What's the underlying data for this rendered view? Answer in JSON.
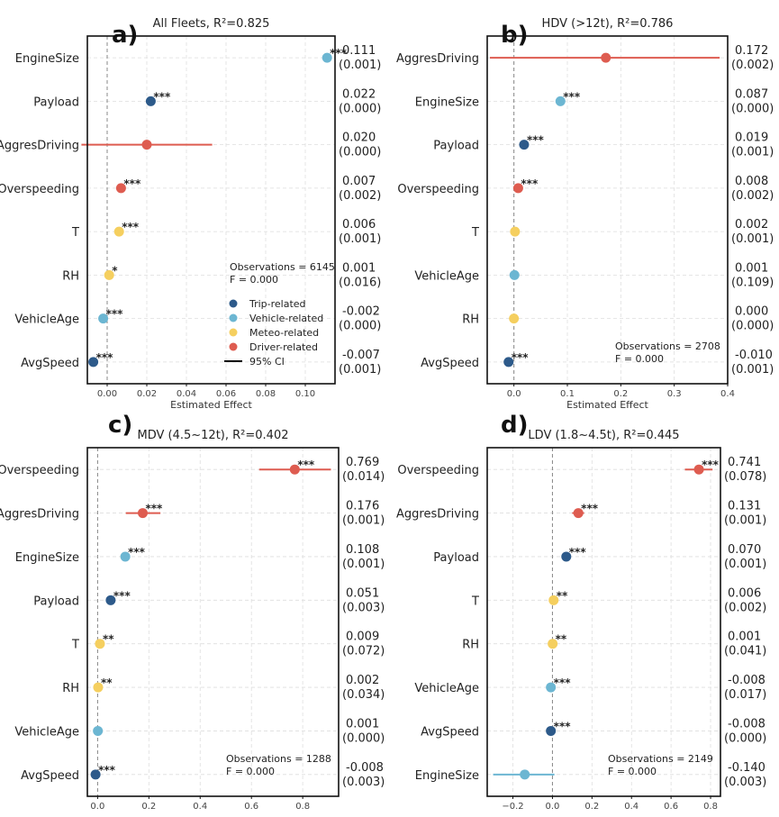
{
  "figure": {
    "legend": [
      {
        "label": "Trip-related",
        "color": "#2d5a8a",
        "kind": "dot"
      },
      {
        "label": "Vehicle-related",
        "color": "#6cb6d2",
        "kind": "dot"
      },
      {
        "label": "Meteo-related",
        "color": "#f5cf5f",
        "kind": "dot"
      },
      {
        "label": "Driver-related",
        "color": "#de5c50",
        "kind": "dot"
      },
      {
        "label": "95% CI",
        "color": "#000000",
        "kind": "line"
      }
    ]
  },
  "chart_data": [
    {
      "type": "scatter",
      "tag": "a)",
      "title": "All Fleets, R²=0.825",
      "xlabel": "Estimated Effect",
      "xlim": [
        -0.01,
        0.115
      ],
      "xticks": [
        0.0,
        0.02,
        0.04,
        0.06,
        0.08,
        0.1
      ],
      "xticklabels": [
        "0.00",
        "0.02",
        "0.04",
        "0.06",
        "0.08",
        "0.10"
      ],
      "observations": "Observations = 6145",
      "f_stat": "F = 0.000",
      "show_legend": true,
      "points": [
        {
          "variable": "EngineSize",
          "estimate": 0.111,
          "ci": [
            0.111,
            0.111
          ],
          "group": "Vehicle-related",
          "stars": "***",
          "coef": "0.111",
          "pval": "(0.001)"
        },
        {
          "variable": "Payload",
          "estimate": 0.022,
          "ci": [
            0.022,
            0.022
          ],
          "group": "Trip-related",
          "stars": "***",
          "coef": "0.022",
          "pval": "(0.000)"
        },
        {
          "variable": "AggresDriving",
          "estimate": 0.02,
          "ci": [
            -0.013,
            0.053
          ],
          "group": "Driver-related",
          "stars": "",
          "coef": "0.020",
          "pval": "(0.000)"
        },
        {
          "variable": "Overspeeding",
          "estimate": 0.007,
          "ci": [
            0.007,
            0.007
          ],
          "group": "Driver-related",
          "stars": "***",
          "coef": "0.007",
          "pval": "(0.002)"
        },
        {
          "variable": "T",
          "estimate": 0.006,
          "ci": [
            0.006,
            0.006
          ],
          "group": "Meteo-related",
          "stars": "***",
          "coef": "0.006",
          "pval": "(0.001)"
        },
        {
          "variable": "RH",
          "estimate": 0.001,
          "ci": [
            0.001,
            0.001
          ],
          "group": "Meteo-related",
          "stars": "*",
          "coef": "0.001",
          "pval": "(0.016)"
        },
        {
          "variable": "VehicleAge",
          "estimate": -0.002,
          "ci": [
            -0.002,
            -0.002
          ],
          "group": "Vehicle-related",
          "stars": "***",
          "coef": "-0.002",
          "pval": "(0.000)"
        },
        {
          "variable": "AvgSpeed",
          "estimate": -0.007,
          "ci": [
            -0.007,
            -0.007
          ],
          "group": "Trip-related",
          "stars": "***",
          "coef": "-0.007",
          "pval": "(0.001)"
        }
      ]
    },
    {
      "type": "scatter",
      "tag": "b)",
      "title": "HDV (>12t), R²=0.786",
      "xlabel": "Estimated Effect",
      "xlim": [
        -0.05,
        0.4
      ],
      "xticks": [
        0.0,
        0.1,
        0.2,
        0.3,
        0.4
      ],
      "xticklabels": [
        "0.0",
        "0.1",
        "0.2",
        "0.3",
        "0.4"
      ],
      "observations": "Observations = 2708",
      "f_stat": "F = 0.000",
      "show_legend": false,
      "points": [
        {
          "variable": "AggresDriving",
          "estimate": 0.172,
          "ci": [
            -0.045,
            0.385
          ],
          "group": "Driver-related",
          "stars": "",
          "coef": "0.172",
          "pval": "(0.002)"
        },
        {
          "variable": "EngineSize",
          "estimate": 0.087,
          "ci": [
            0.087,
            0.087
          ],
          "group": "Vehicle-related",
          "stars": "***",
          "coef": "0.087",
          "pval": "(0.000)"
        },
        {
          "variable": "Payload",
          "estimate": 0.019,
          "ci": [
            0.019,
            0.019
          ],
          "group": "Trip-related",
          "stars": "***",
          "coef": "0.019",
          "pval": "(0.001)"
        },
        {
          "variable": "Overspeeding",
          "estimate": 0.008,
          "ci": [
            0.008,
            0.008
          ],
          "group": "Driver-related",
          "stars": "***",
          "coef": "0.008",
          "pval": "(0.002)"
        },
        {
          "variable": "T",
          "estimate": 0.002,
          "ci": [
            0.002,
            0.002
          ],
          "group": "Meteo-related",
          "stars": "",
          "coef": "0.002",
          "pval": "(0.001)"
        },
        {
          "variable": "VehicleAge",
          "estimate": 0.001,
          "ci": [
            0.001,
            0.001
          ],
          "group": "Vehicle-related",
          "stars": "",
          "coef": "0.001",
          "pval": "(0.109)"
        },
        {
          "variable": "RH",
          "estimate": 0.0,
          "ci": [
            0.0,
            0.0
          ],
          "group": "Meteo-related",
          "stars": "",
          "coef": "0.000",
          "pval": "(0.000)"
        },
        {
          "variable": "AvgSpeed",
          "estimate": -0.01,
          "ci": [
            -0.01,
            -0.01
          ],
          "group": "Trip-related",
          "stars": "***",
          "coef": "-0.010",
          "pval": "(0.001)"
        }
      ]
    },
    {
      "type": "scatter",
      "tag": "c)",
      "title": "MDV (4.5~12t), R²=0.402",
      "xlabel": "Estimated Effect",
      "xlim": [
        -0.04,
        0.94
      ],
      "xticks": [
        0.0,
        0.2,
        0.4,
        0.6,
        0.8
      ],
      "xticklabels": [
        "0.0",
        "0.2",
        "0.4",
        "0.6",
        "0.8"
      ],
      "observations": "Observations = 1288",
      "f_stat": "F = 0.000",
      "show_legend": false,
      "points": [
        {
          "variable": "Overspeeding",
          "estimate": 0.769,
          "ci": [
            0.63,
            0.91
          ],
          "group": "Driver-related",
          "stars": "***",
          "coef": "0.769",
          "pval": "(0.014)"
        },
        {
          "variable": "AggresDriving",
          "estimate": 0.176,
          "ci": [
            0.11,
            0.245
          ],
          "group": "Driver-related",
          "stars": "***",
          "coef": "0.176",
          "pval": "(0.001)"
        },
        {
          "variable": "EngineSize",
          "estimate": 0.108,
          "ci": [
            0.108,
            0.108
          ],
          "group": "Vehicle-related",
          "stars": "***",
          "coef": "0.108",
          "pval": "(0.001)"
        },
        {
          "variable": "Payload",
          "estimate": 0.051,
          "ci": [
            0.051,
            0.051
          ],
          "group": "Trip-related",
          "stars": "***",
          "coef": "0.051",
          "pval": "(0.003)"
        },
        {
          "variable": "T",
          "estimate": 0.009,
          "ci": [
            0.009,
            0.009
          ],
          "group": "Meteo-related",
          "stars": "**",
          "coef": "0.009",
          "pval": "(0.072)"
        },
        {
          "variable": "RH",
          "estimate": 0.002,
          "ci": [
            0.002,
            0.002
          ],
          "group": "Meteo-related",
          "stars": "**",
          "coef": "0.002",
          "pval": "(0.034)"
        },
        {
          "variable": "VehicleAge",
          "estimate": 0.001,
          "ci": [
            0.001,
            0.001
          ],
          "group": "Vehicle-related",
          "stars": "",
          "coef": "0.001",
          "pval": "(0.000)"
        },
        {
          "variable": "AvgSpeed",
          "estimate": -0.008,
          "ci": [
            -0.008,
            -0.008
          ],
          "group": "Trip-related",
          "stars": "***",
          "coef": "-0.008",
          "pval": "(0.003)"
        }
      ]
    },
    {
      "type": "scatter",
      "tag": "d)",
      "title": "LDV (1.8~4.5t), R²=0.445",
      "xlabel": "Estimated Effect",
      "xlim": [
        -0.33,
        0.85
      ],
      "xticks": [
        -0.2,
        0.0,
        0.2,
        0.4,
        0.6,
        0.8
      ],
      "xticklabels": [
        "−0.2",
        "0.0",
        "0.2",
        "0.4",
        "0.6",
        "0.8"
      ],
      "observations": "Observations = 2149",
      "f_stat": "F = 0.000",
      "show_legend": false,
      "points": [
        {
          "variable": "Overspeeding",
          "estimate": 0.741,
          "ci": [
            0.67,
            0.81
          ],
          "group": "Driver-related",
          "stars": "***",
          "coef": "0.741",
          "pval": "(0.078)"
        },
        {
          "variable": "AggresDriving",
          "estimate": 0.131,
          "ci": [
            0.1,
            0.16
          ],
          "group": "Driver-related",
          "stars": "***",
          "coef": "0.131",
          "pval": "(0.001)"
        },
        {
          "variable": "Payload",
          "estimate": 0.07,
          "ci": [
            0.07,
            0.07
          ],
          "group": "Trip-related",
          "stars": "***",
          "coef": "0.070",
          "pval": "(0.001)"
        },
        {
          "variable": "T",
          "estimate": 0.006,
          "ci": [
            0.006,
            0.006
          ],
          "group": "Meteo-related",
          "stars": "**",
          "coef": "0.006",
          "pval": "(0.002)"
        },
        {
          "variable": "RH",
          "estimate": 0.001,
          "ci": [
            0.001,
            0.001
          ],
          "group": "Meteo-related",
          "stars": "**",
          "coef": "0.001",
          "pval": "(0.041)"
        },
        {
          "variable": "VehicleAge",
          "estimate": -0.008,
          "ci": [
            -0.008,
            -0.008
          ],
          "group": "Vehicle-related",
          "stars": "***",
          "coef": "-0.008",
          "pval": "(0.017)"
        },
        {
          "variable": "AvgSpeed",
          "estimate": -0.008,
          "ci": [
            -0.008,
            -0.008
          ],
          "group": "Trip-related",
          "stars": "***",
          "coef": "-0.008",
          "pval": "(0.000)"
        },
        {
          "variable": "EngineSize",
          "estimate": -0.14,
          "ci": [
            -0.3,
            0.01
          ],
          "group": "Vehicle-related",
          "stars": "",
          "coef": "-0.140",
          "pval": "(0.003)"
        }
      ]
    }
  ]
}
